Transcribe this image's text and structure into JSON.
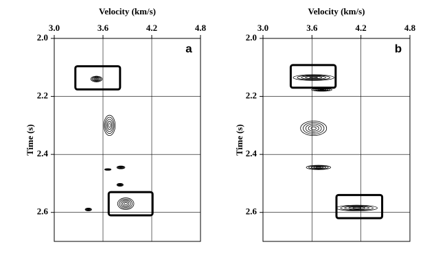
{
  "chart_data": [
    {
      "type": "contour",
      "panel_label": "a",
      "xlabel": "Velocity (km/s)",
      "ylabel": "Time (s)",
      "xlim": [
        3.0,
        4.8
      ],
      "xticks": [
        {
          "value": 3.0,
          "label": "3.0"
        },
        3.6,
        4.2,
        4.8
      ],
      "ylim": [
        2.0,
        2.7
      ],
      "yticks": [
        {
          "value": 2.0,
          "label": "2.0"
        },
        2.2,
        2.4,
        2.6
      ],
      "y_inverted": true,
      "grid": true,
      "color": "#000000",
      "events": [
        {
          "velocity": 3.52,
          "time": 2.14,
          "velocity_spread": 0.14,
          "time_spread": 0.02
        },
        {
          "velocity": 3.68,
          "time": 2.3,
          "velocity_spread": 0.14,
          "time_spread": 0.07
        },
        {
          "velocity": 3.82,
          "time": 2.445,
          "velocity_spread": 0.1,
          "time_spread": 0.01
        },
        {
          "velocity": 3.66,
          "time": 2.452,
          "velocity_spread": 0.08,
          "time_spread": 0.006
        },
        {
          "velocity": 3.81,
          "time": 2.505,
          "velocity_spread": 0.08,
          "time_spread": 0.01
        },
        {
          "velocity": 3.88,
          "time": 2.57,
          "velocity_spread": 0.2,
          "time_spread": 0.04
        },
        {
          "velocity": 3.42,
          "time": 2.59,
          "velocity_spread": 0.08,
          "time_spread": 0.01
        }
      ],
      "boxes": [
        {
          "xlim": [
            3.26,
            3.81
          ],
          "ylim": [
            2.096,
            2.176
          ]
        },
        {
          "xlim": [
            3.67,
            4.21
          ],
          "ylim": [
            2.53,
            2.61
          ]
        }
      ]
    },
    {
      "type": "contour",
      "panel_label": "b",
      "xlabel": "Velocity (km/s)",
      "ylabel": "Time (s)",
      "xlim": [
        3.0,
        4.8
      ],
      "xticks": [
        {
          "value": 3.0,
          "label": "3.0"
        },
        3.6,
        4.2,
        4.8
      ],
      "ylim": [
        2.0,
        2.7
      ],
      "yticks": [
        {
          "value": 2.0,
          "label": "2.0"
        },
        2.2,
        2.4,
        2.6
      ],
      "y_inverted": true,
      "grid": true,
      "color": "#000000",
      "events": [
        {
          "velocity": 3.62,
          "time": 2.135,
          "velocity_spread": 0.5,
          "time_spread": 0.02
        },
        {
          "velocity": 3.72,
          "time": 2.177,
          "velocity_spread": 0.25,
          "time_spread": 0.01
        },
        {
          "velocity": 3.62,
          "time": 2.31,
          "velocity_spread": 0.32,
          "time_spread": 0.05
        },
        {
          "velocity": 3.68,
          "time": 2.445,
          "velocity_spread": 0.3,
          "time_spread": 0.015
        },
        {
          "velocity": 4.15,
          "time": 2.585,
          "velocity_spread": 0.5,
          "time_spread": 0.02
        }
      ],
      "boxes": [
        {
          "xlim": [
            3.34,
            3.89
          ],
          "ylim": [
            2.092,
            2.17
          ]
        },
        {
          "xlim": [
            3.9,
            4.46
          ],
          "ylim": [
            2.54,
            2.62
          ]
        }
      ]
    }
  ]
}
